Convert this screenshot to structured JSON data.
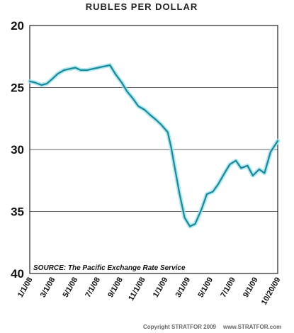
{
  "chart_data": {
    "type": "line",
    "title": "RUBLES PER DOLLAR",
    "xlabel": "",
    "ylabel": "",
    "ylim": [
      20,
      40
    ],
    "y_inverted": true,
    "yticks": [
      20,
      25,
      30,
      35,
      40
    ],
    "ytick_labels": [
      "20",
      "25",
      "30",
      "35",
      "40"
    ],
    "grid": "horizontal",
    "x_ticks": [
      "1/1/08",
      "3/1/08",
      "5/1/08",
      "7/1/08",
      "9/1/08",
      "11/1/08",
      "1/1/09",
      "3/1/09",
      "5/1/09",
      "7/1/09",
      "9/1/09",
      "10/20/09"
    ],
    "series": [
      {
        "color": "#1a8a9a",
        "x": [
          "2008-01-01",
          "2008-01-15",
          "2008-02-01",
          "2008-02-15",
          "2008-03-01",
          "2008-03-15",
          "2008-04-01",
          "2008-04-15",
          "2008-05-01",
          "2008-05-15",
          "2008-06-01",
          "2008-06-15",
          "2008-07-01",
          "2008-07-15",
          "2008-08-01",
          "2008-08-15",
          "2008-09-01",
          "2008-09-15",
          "2008-10-01",
          "2008-10-15",
          "2008-11-01",
          "2008-11-15",
          "2008-12-01",
          "2008-12-15",
          "2009-01-01",
          "2009-01-10",
          "2009-01-20",
          "2009-02-01",
          "2009-02-15",
          "2009-03-01",
          "2009-03-15",
          "2009-04-01",
          "2009-04-15",
          "2009-05-01",
          "2009-05-15",
          "2009-06-01",
          "2009-06-15",
          "2009-07-01",
          "2009-07-15",
          "2009-08-01",
          "2009-08-15",
          "2009-09-01",
          "2009-09-15",
          "2009-10-01",
          "2009-10-20"
        ],
        "y": [
          24.5,
          24.6,
          24.8,
          24.7,
          24.3,
          23.9,
          23.6,
          23.5,
          23.4,
          23.6,
          23.6,
          23.5,
          23.4,
          23.3,
          23.2,
          23.9,
          24.6,
          25.3,
          25.9,
          26.5,
          26.8,
          27.2,
          27.6,
          28.0,
          28.6,
          29.8,
          31.5,
          33.5,
          35.5,
          36.2,
          36.0,
          34.8,
          33.6,
          33.4,
          32.8,
          31.9,
          31.2,
          30.9,
          31.5,
          31.3,
          32.1,
          31.6,
          31.9,
          30.2,
          29.3
        ]
      }
    ],
    "source_label": "SOURCE:",
    "source_text": "The Pacific Exchange Rate Service",
    "credit_left": "Copyright STRATFOR 2009",
    "credit_right": "www.STRATFOR.com"
  }
}
